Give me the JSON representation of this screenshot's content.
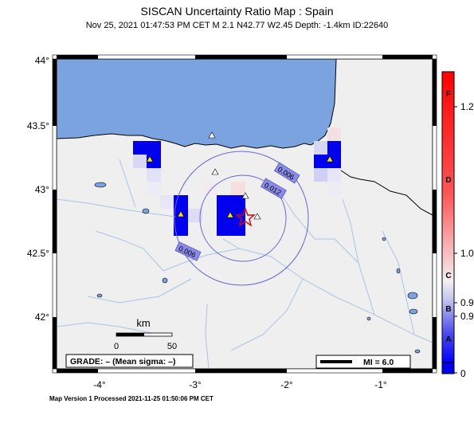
{
  "header": {
    "title": "SISCAN Uncertainty Ratio Map : Spain",
    "subtitle": "Nov 25, 2021 01:47:53 PM CET   M 2.1   N42.77 W2.45   Depth: -1.4km   ID:22640"
  },
  "map": {
    "lat_ticks": [
      "44°",
      "43.5°",
      "43°",
      "42.5°",
      "42°"
    ],
    "lon_ticks": [
      "-4°",
      "-3°",
      "-2°",
      "-1°"
    ],
    "contour_labels": [
      "0.006",
      "0.012",
      "0.006"
    ],
    "epicenter": {
      "lat": 42.77,
      "lon": -2.45
    },
    "scale_bar": {
      "unit": "km",
      "start": "0",
      "end": "50"
    },
    "grade_box": "GRADE: – (Mean sigma: –)",
    "mi_legend": "MI = 6.0"
  },
  "colorbar": {
    "labels": [
      "F",
      "D",
      "C",
      "B",
      "A"
    ],
    "values": [
      "1.2",
      "1.0",
      "0.9",
      "0.9",
      "0"
    ]
  },
  "footer": "Map Version 1 Processed 2021-11-25 01:50:06 PM CET",
  "colors": {
    "sea": "#7aa3df",
    "land": "#efefef",
    "high": "#ff0000",
    "low": "#0000ff",
    "contour": "#6666dd",
    "river": "#a8c4e6"
  }
}
